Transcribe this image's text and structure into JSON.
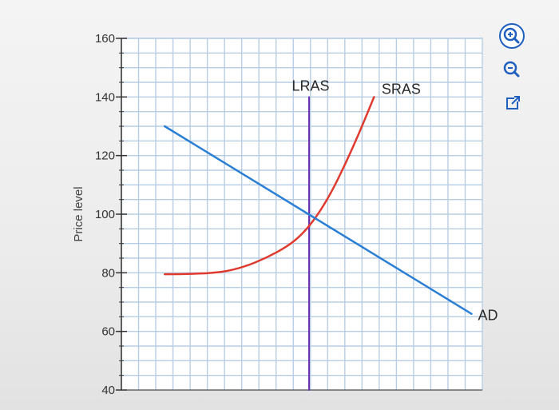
{
  "chart_data": {
    "type": "line",
    "ylabel": "Price level",
    "xlabel": "",
    "ylim": [
      40,
      160
    ],
    "yticks": [
      160,
      140,
      120,
      100,
      80,
      60,
      40
    ],
    "grid": true,
    "series": [
      {
        "name": "LRAS",
        "color": "#6a2fb0",
        "points": [
          [
            0.52,
            40
          ],
          [
            0.52,
            140
          ]
        ]
      },
      {
        "name": "SRAS",
        "color": "#e03a2f",
        "points": [
          [
            0.12,
            79.5
          ],
          [
            0.2,
            79.6
          ],
          [
            0.28,
            80.2
          ],
          [
            0.34,
            82
          ],
          [
            0.4,
            85
          ],
          [
            0.46,
            89
          ],
          [
            0.5,
            93
          ],
          [
            0.54,
            99
          ],
          [
            0.58,
            107
          ],
          [
            0.62,
            117
          ],
          [
            0.66,
            128
          ],
          [
            0.7,
            140
          ]
        ]
      },
      {
        "name": "AD",
        "color": "#2a7fd4",
        "points": [
          [
            0.12,
            130
          ],
          [
            0.97,
            66
          ]
        ]
      }
    ],
    "labels": [
      {
        "text": "LRAS",
        "series": "LRAS"
      },
      {
        "text": "SRAS",
        "series": "SRAS"
      },
      {
        "text": "AD",
        "series": "AD"
      }
    ]
  },
  "toolbar": {
    "buttons": [
      {
        "icon": "zoom-in-icon"
      },
      {
        "icon": "zoom-out-icon"
      },
      {
        "icon": "popout-icon"
      }
    ]
  },
  "colors": {
    "grid": "#b8cde4",
    "axis": "#333333",
    "tool": "#1f5fbf"
  }
}
